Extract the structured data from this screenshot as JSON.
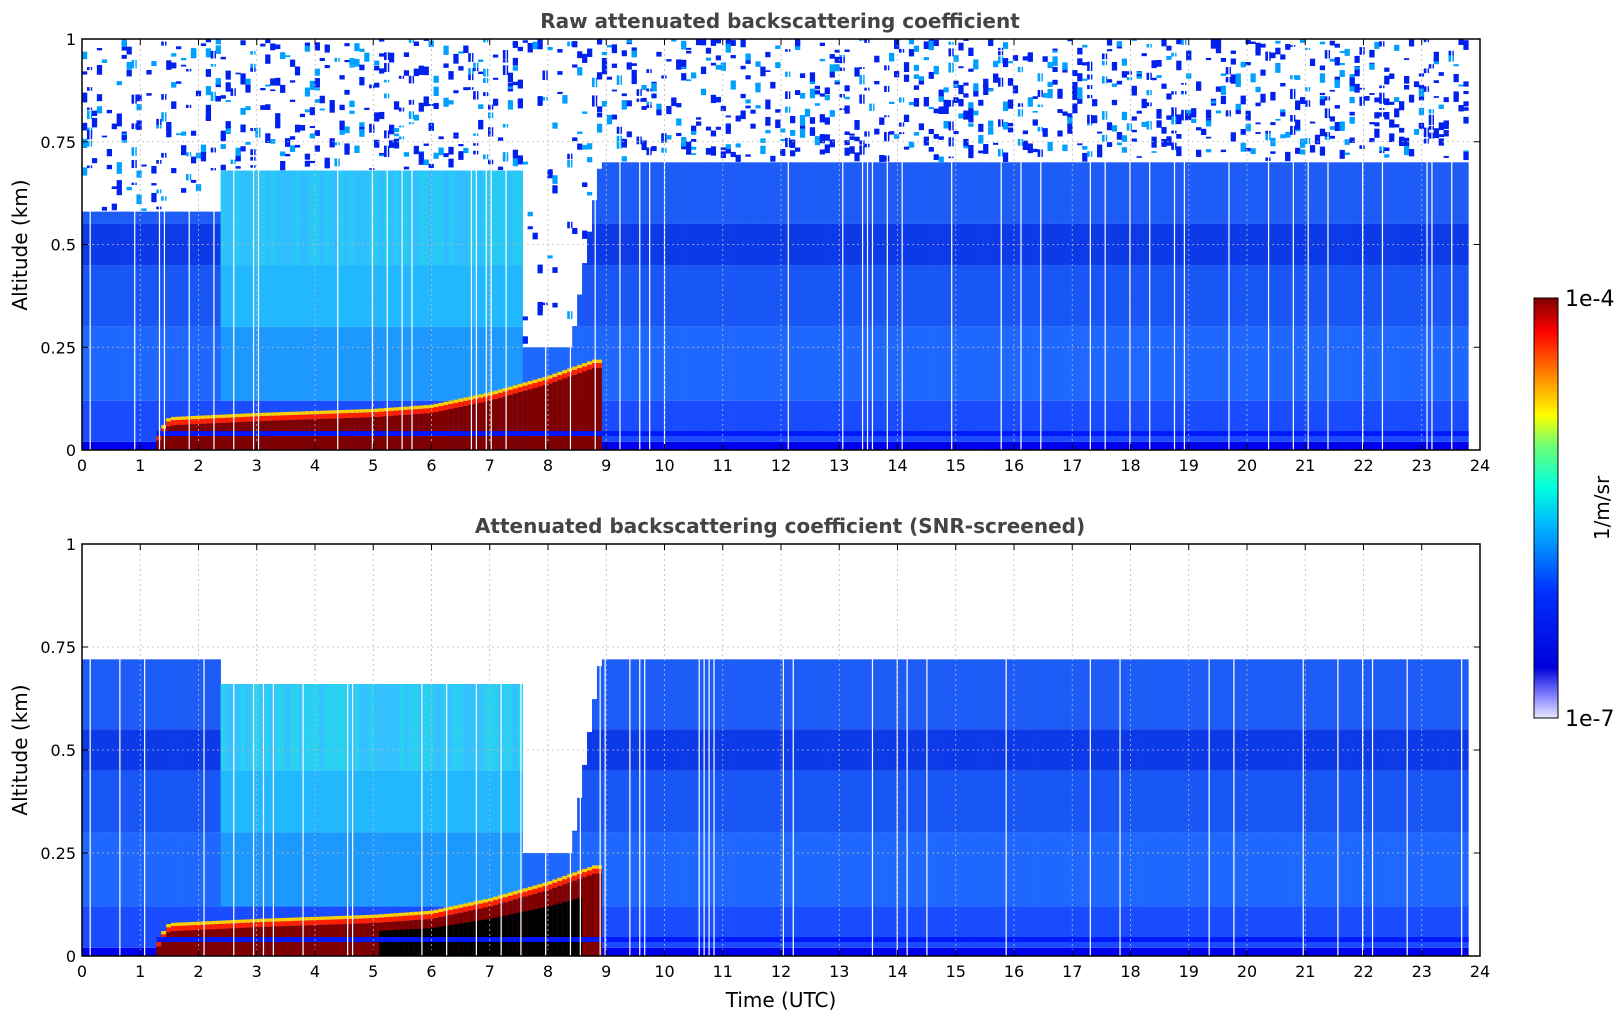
{
  "chart_data": [
    {
      "type": "heatmap",
      "title": "Raw attenuated backscattering coefficient",
      "xlabel": "",
      "ylabel": "Altitude (km)",
      "xlim": [
        0,
        24
      ],
      "ylim": [
        0,
        1
      ],
      "xticks": [
        "0",
        "1",
        "2",
        "3",
        "4",
        "5",
        "6",
        "7",
        "8",
        "9",
        "10",
        "11",
        "12",
        "13",
        "14",
        "15",
        "16",
        "17",
        "18",
        "19",
        "20",
        "21",
        "22",
        "23",
        "24"
      ],
      "yticks": [
        "0",
        "0.25",
        "0.5",
        "0.75",
        "1"
      ],
      "grid": true,
      "screened": false,
      "features": {
        "surface_layer_top_km": [
          [
            1.3,
            0.02
          ],
          [
            1.5,
            0.06
          ],
          [
            3,
            0.07
          ],
          [
            5,
            0.08
          ],
          [
            6,
            0.09
          ],
          [
            7,
            0.12
          ],
          [
            8,
            0.16
          ],
          [
            8.8,
            0.2
          ]
        ],
        "aerosol_top_km": [
          [
            0,
            0.58
          ],
          [
            2.4,
            0.58
          ],
          [
            2.4,
            0.68
          ],
          [
            7.6,
            0.68
          ],
          [
            7.6,
            0.25
          ],
          [
            8.4,
            0.25
          ],
          [
            8.9,
            0.7
          ],
          [
            23.8,
            0.7
          ]
        ],
        "constant_layer_km": 0.04,
        "data_end_hour": 23.8
      }
    },
    {
      "type": "heatmap",
      "title": "Attenuated backscattering coefficient (SNR-screened)",
      "xlabel": "Time (UTC)",
      "ylabel": "Altitude (km)",
      "xlim": [
        0,
        24
      ],
      "ylim": [
        0,
        1
      ],
      "xticks": [
        "0",
        "1",
        "2",
        "3",
        "4",
        "5",
        "6",
        "7",
        "8",
        "9",
        "10",
        "11",
        "12",
        "13",
        "14",
        "15",
        "16",
        "17",
        "18",
        "19",
        "20",
        "21",
        "22",
        "23",
        "24"
      ],
      "yticks": [
        "0",
        "0.25",
        "0.5",
        "0.75",
        "1"
      ],
      "grid": true,
      "screened": true,
      "features": {
        "surface_layer_top_km": [
          [
            1.3,
            0.02
          ],
          [
            1.5,
            0.06
          ],
          [
            3,
            0.07
          ],
          [
            5,
            0.08
          ],
          [
            6,
            0.09
          ],
          [
            7,
            0.12
          ],
          [
            8,
            0.16
          ],
          [
            8.8,
            0.2
          ]
        ],
        "aerosol_top_km": [
          [
            0,
            0.72
          ],
          [
            2.4,
            0.72
          ],
          [
            2.4,
            0.66
          ],
          [
            7.6,
            0.66
          ],
          [
            7.6,
            0.25
          ],
          [
            8.4,
            0.25
          ],
          [
            8.9,
            0.72
          ],
          [
            23.8,
            0.72
          ]
        ],
        "constant_layer_km": 0.04,
        "data_end_hour": 23.8
      }
    }
  ],
  "colorbar": {
    "label": "1/m/sr",
    "max_label": "1e-4",
    "min_label": "1e-7",
    "scale": "log",
    "range": [
      1e-07,
      0.0001
    ],
    "colormap": [
      "#e8e8ff",
      "#0000cd",
      "#0000ff",
      "#0050ff",
      "#00a0ff",
      "#00ffff",
      "#40ff80",
      "#ffff00",
      "#ff8000",
      "#ff0000",
      "#800000"
    ]
  }
}
